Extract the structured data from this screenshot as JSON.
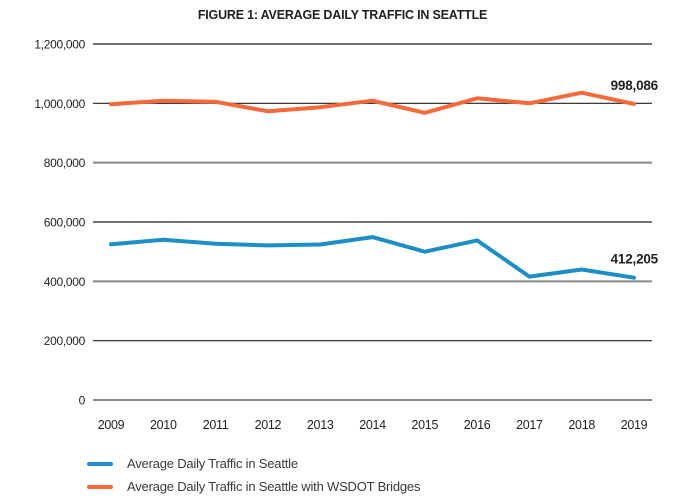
{
  "title": "FIGURE 1: AVERAGE DAILY TRAFFIC IN SEATTLE",
  "colors": {
    "blue": "#1e8ec8",
    "orange": "#f5693b",
    "grid_dark": "#231f20",
    "grid_gray": "#87888a",
    "text": "#231f20",
    "legend_text": "#3a3a3a"
  },
  "chart_data": {
    "type": "line",
    "title": "FIGURE 1: AVERAGE DAILY TRAFFIC IN SEATTLE",
    "x": [
      "2009",
      "2010",
      "2011",
      "2012",
      "2013",
      "2014",
      "2015",
      "2016",
      "2017",
      "2018",
      "2019"
    ],
    "series": [
      {
        "name": "Average Daily Traffic in Seattle",
        "color_key": "blue",
        "values": [
          525000,
          540000,
          527000,
          521000,
          524000,
          549000,
          500000,
          538000,
          416000,
          440000,
          412205
        ],
        "end_label": "412,205"
      },
      {
        "name": "Average Daily Traffic in Seattle with WSDOT Bridges",
        "color_key": "orange",
        "values": [
          997000,
          1009000,
          1005000,
          973000,
          987000,
          1009000,
          968000,
          1017000,
          1000000,
          1036000,
          998086
        ],
        "end_label": "998,086"
      }
    ],
    "ylim": [
      0,
      1200000
    ],
    "ytick_step": 200000,
    "yticks": [
      {
        "value": 0,
        "label": "0",
        "line": "gray"
      },
      {
        "value": 200000,
        "label": "200,000",
        "line": "dark"
      },
      {
        "value": 400000,
        "label": "400,000",
        "line": "gray"
      },
      {
        "value": 600000,
        "label": "600,000",
        "line": "dark"
      },
      {
        "value": 800000,
        "label": "800,000",
        "line": "gray"
      },
      {
        "value": 1000000,
        "label": "1,000,000",
        "line": "dark"
      },
      {
        "value": 1200000,
        "label": "1,200,000",
        "line": "dark"
      }
    ],
    "grid": "horizontal-only",
    "legend_position": "bottom-left",
    "xlabel": "",
    "ylabel": ""
  }
}
